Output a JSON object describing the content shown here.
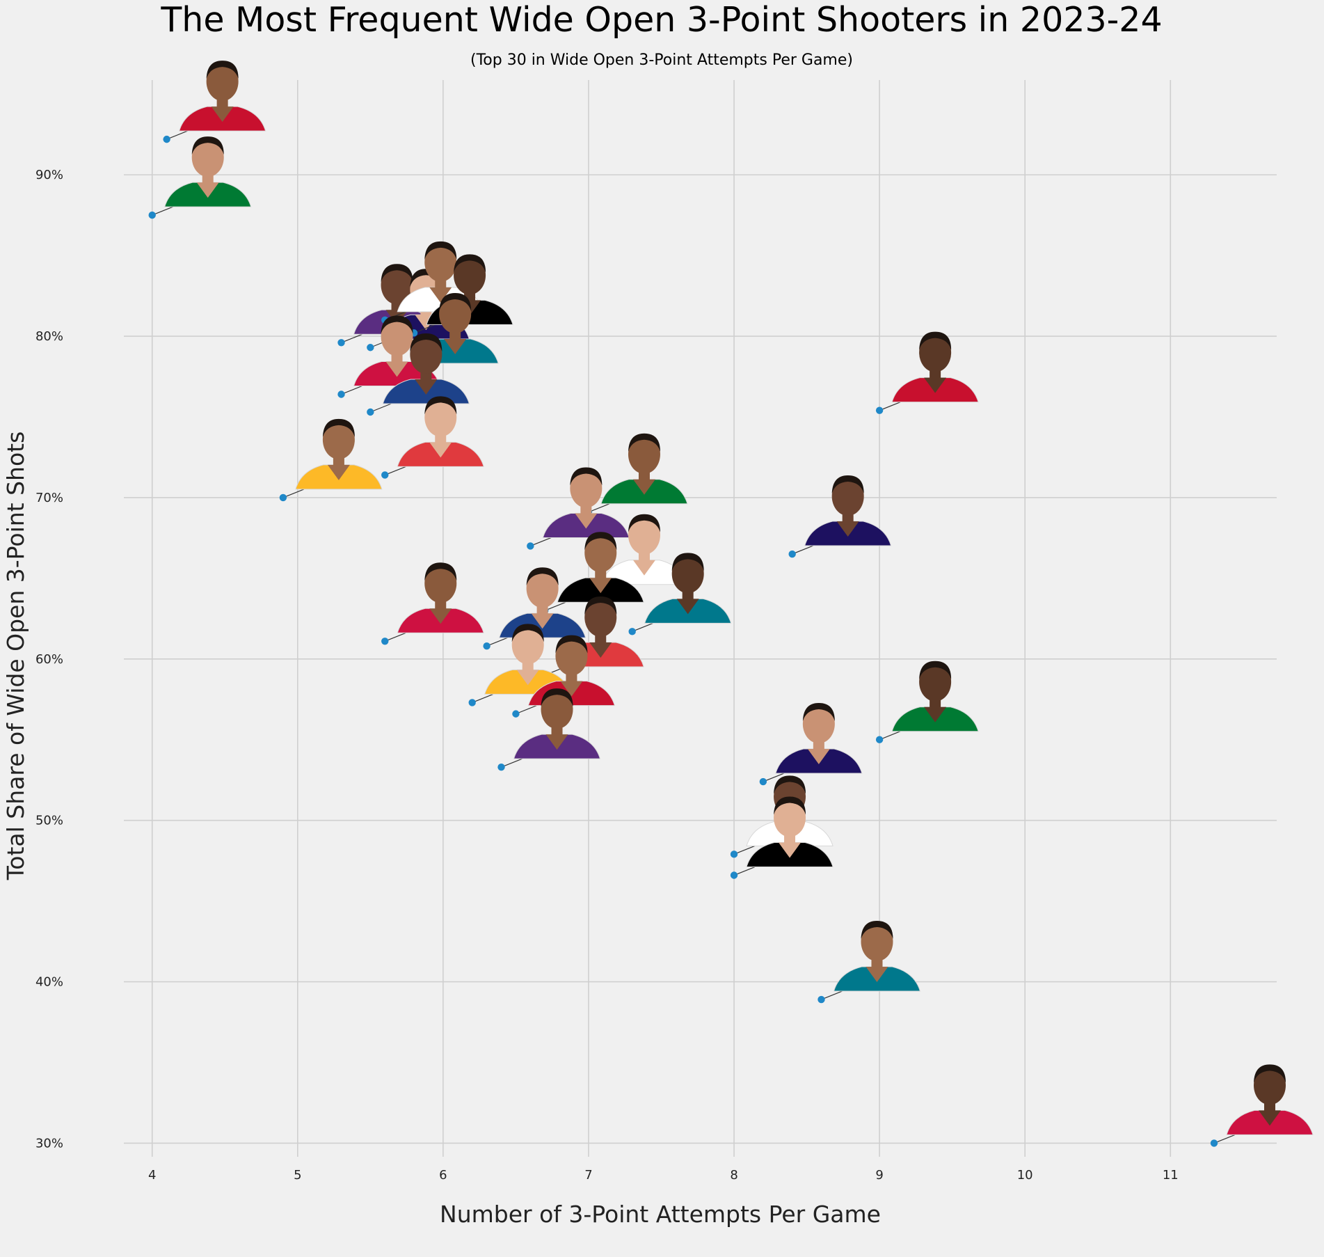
{
  "chart_data": {
    "type": "scatter",
    "title": "The Most Frequent Wide Open 3-Point Shooters in 2023-24",
    "subtitle": "(Top 30 in Wide Open 3-Point Attempts Per Game)",
    "xlabel": "Number of 3-Point Attempts Per Game",
    "ylabel": "Total Share of Wide Open 3-Point Shots",
    "xlim": [
      3.7,
      11.85
    ],
    "ylim": [
      27,
      96
    ],
    "x_ticks": [
      4,
      5,
      6,
      7,
      8,
      9,
      10,
      11
    ],
    "y_ticks": [
      30,
      40,
      50,
      60,
      70,
      80,
      90
    ],
    "y_tick_labels": [
      "30%",
      "40%",
      "50%",
      "60%",
      "70%",
      "80%",
      "90%"
    ],
    "grid": true,
    "marker_color": "#1f88c8",
    "marker_images": "player headshots",
    "points": [
      {
        "x": 4.1,
        "y": 92.2
      },
      {
        "x": 4.0,
        "y": 87.5
      },
      {
        "x": 5.3,
        "y": 79.6
      },
      {
        "x": 5.5,
        "y": 79.3
      },
      {
        "x": 5.6,
        "y": 81.0
      },
      {
        "x": 5.8,
        "y": 80.2
      },
      {
        "x": 5.7,
        "y": 77.8
      },
      {
        "x": 5.3,
        "y": 76.4
      },
      {
        "x": 5.5,
        "y": 75.3
      },
      {
        "x": 5.6,
        "y": 71.4
      },
      {
        "x": 4.9,
        "y": 70.0
      },
      {
        "x": 9.0,
        "y": 75.4
      },
      {
        "x": 7.0,
        "y": 69.1
      },
      {
        "x": 6.6,
        "y": 67.0
      },
      {
        "x": 8.4,
        "y": 66.5
      },
      {
        "x": 7.0,
        "y": 64.1
      },
      {
        "x": 6.7,
        "y": 63.0
      },
      {
        "x": 7.3,
        "y": 61.7
      },
      {
        "x": 5.6,
        "y": 61.1
      },
      {
        "x": 6.3,
        "y": 60.8
      },
      {
        "x": 6.7,
        "y": 59.0
      },
      {
        "x": 6.2,
        "y": 57.3
      },
      {
        "x": 6.5,
        "y": 56.6
      },
      {
        "x": 9.0,
        "y": 55.0
      },
      {
        "x": 6.4,
        "y": 53.3
      },
      {
        "x": 8.2,
        "y": 52.4
      },
      {
        "x": 8.0,
        "y": 47.9
      },
      {
        "x": 8.0,
        "y": 46.6
      },
      {
        "x": 8.6,
        "y": 38.9
      },
      {
        "x": 11.3,
        "y": 30.0
      }
    ]
  },
  "palette": {
    "skin": [
      "#8a5a3c",
      "#c99274",
      "#6b4330",
      "#e0b094",
      "#9c6a4a",
      "#5a3826"
    ],
    "jersey": [
      "#c8102e",
      "#ffffff",
      "#1d428a",
      "#007a33",
      "#000000",
      "#e03a3e",
      "#5a2d81",
      "#00788c",
      "#fdb927",
      "#1d1160",
      "#ce1141"
    ]
  }
}
